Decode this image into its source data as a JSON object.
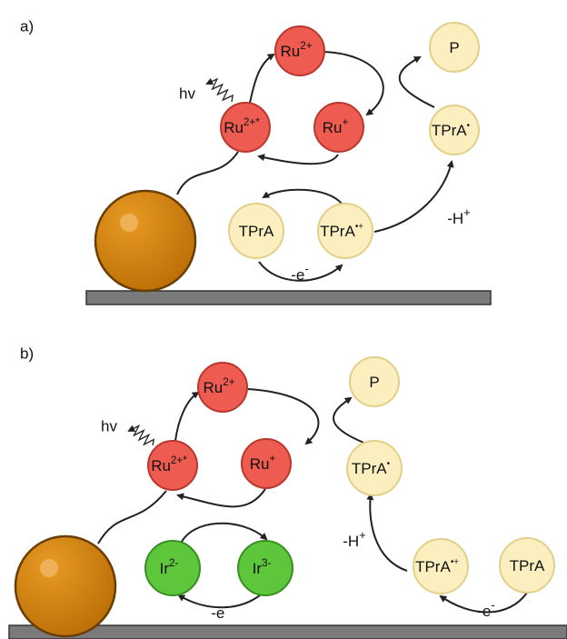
{
  "panels": [
    {
      "label": "a)",
      "hv": "hv",
      "deprotonation": {
        "text": "-H",
        "sup": "+"
      },
      "electron": [
        {
          "text": "-e",
          "sup": "-"
        }
      ],
      "nodes": [
        {
          "text": "Ru",
          "sup": "2+"
        },
        {
          "text": "P"
        },
        {
          "text": "Ru",
          "sup": "2+*"
        },
        {
          "text": "Ru",
          "sup": "+"
        },
        {
          "text": "TPrA",
          "sup": "•"
        },
        {
          "text": "TPrA"
        },
        {
          "text": "TPrA",
          "sup": "•+"
        }
      ]
    },
    {
      "label": "b)",
      "hv": "hv",
      "deprotonation": {
        "text": "-H",
        "sup": "+"
      },
      "electron": [
        {
          "text": "-e",
          "sup": "-"
        },
        {
          "text": "-e",
          "sup": "-"
        }
      ],
      "nodes": [
        {
          "text": "Ru",
          "sup": "2+"
        },
        {
          "text": "P"
        },
        {
          "text": "Ru",
          "sup": "2+*"
        },
        {
          "text": "Ru",
          "sup": "+"
        },
        {
          "text": "TPrA",
          "sup": "•"
        },
        {
          "text": "Ir",
          "sup": "2-"
        },
        {
          "text": "Ir",
          "sup": "3-"
        },
        {
          "text": "TPrA",
          "sup": "•+"
        },
        {
          "text": "TPrA"
        }
      ]
    }
  ]
}
